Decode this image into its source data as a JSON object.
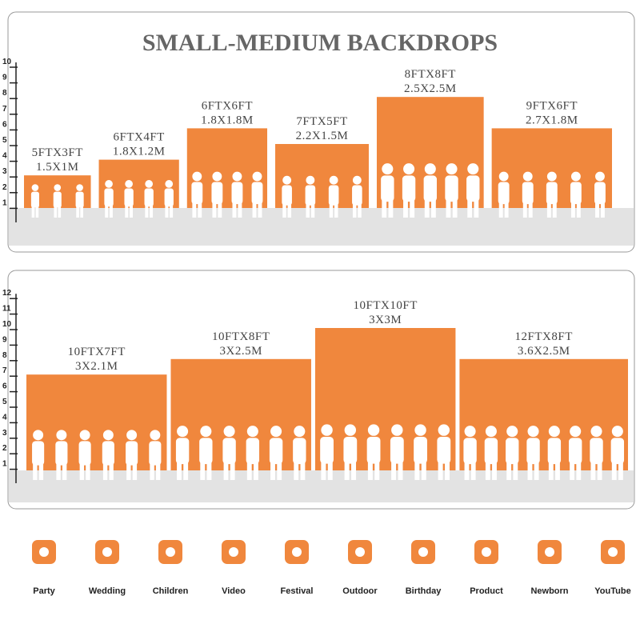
{
  "title": "SMALL-MEDIUM BACKDROPS",
  "panels": [
    {
      "ticks": [
        "1",
        "2",
        "3",
        "4",
        "5",
        "6",
        "7",
        "8",
        "9",
        "10"
      ],
      "backdrops": [
        {
          "label": "5FTX3FT",
          "metric": "1.5X1M"
        },
        {
          "label": "6FTX4FT",
          "metric": "1.8X1.2M"
        },
        {
          "label": "6FTX6FT",
          "metric": "1.8X1.8M"
        },
        {
          "label": "7FTX5FT",
          "metric": "2.2X1.5M"
        },
        {
          "label": "8FTX8FT",
          "metric": "2.5X2.5M"
        },
        {
          "label": "9FTX6FT",
          "metric": "2.7X1.8M"
        }
      ]
    },
    {
      "ticks": [
        "1",
        "2",
        "3",
        "4",
        "5",
        "6",
        "7",
        "8",
        "9",
        "10",
        "11",
        "12"
      ],
      "backdrops": [
        {
          "label": "10FTX7FT",
          "metric": "3X2.1M"
        },
        {
          "label": "10FTX8FT",
          "metric": "3X2.5M"
        },
        {
          "label": "10FTX10FT",
          "metric": "3X3M"
        },
        {
          "label": "12FTX8FT",
          "metric": "3.6X2.5M"
        }
      ]
    }
  ],
  "uses": [
    "Party",
    "Wedding",
    "Children",
    "Video",
    "Festival",
    "Outdoor",
    "Birthday",
    "Product",
    "Newborn",
    "YouTube"
  ]
}
